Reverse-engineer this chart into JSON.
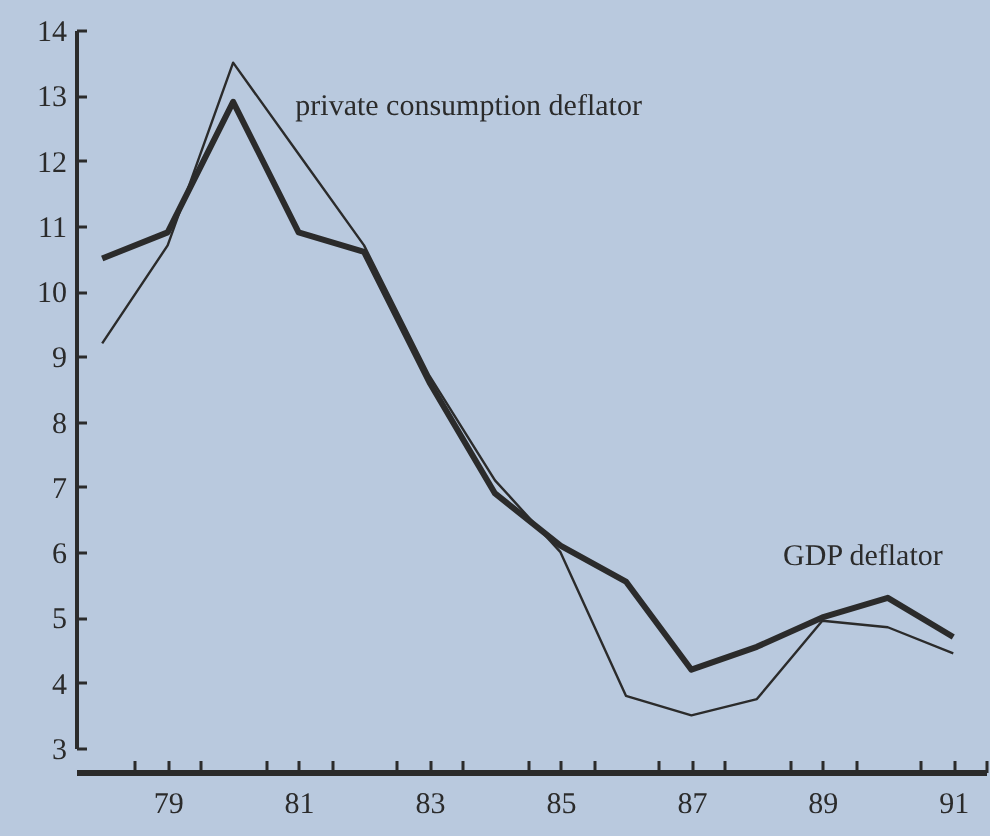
{
  "chart_data": {
    "type": "line",
    "x": [
      78,
      79,
      80,
      81,
      82,
      83,
      84,
      85,
      86,
      87,
      88,
      89,
      90,
      91
    ],
    "series": [
      {
        "name": "GDP deflator",
        "color": "#2b2b2b",
        "values": [
          10.5,
          10.9,
          12.9,
          10.9,
          10.6,
          8.6,
          6.9,
          6.1,
          5.55,
          4.2,
          4.55,
          5.0,
          5.3,
          4.7
        ]
      },
      {
        "name": "private consumption deflator",
        "color": "#2b2b2b",
        "values": [
          9.2,
          10.7,
          13.5,
          12.1,
          10.7,
          8.7,
          7.1,
          6.0,
          3.8,
          3.5,
          3.75,
          4.95,
          4.85,
          4.45
        ]
      }
    ],
    "xlim": [
      77.6,
      91.5
    ],
    "xticks": [
      {
        "value": 78.5,
        "label": null
      },
      79,
      {
        "value": 79.5,
        "label": null
      },
      {
        "value": 80.5,
        "label": null
      },
      81,
      {
        "value": 81.5,
        "label": null
      },
      {
        "value": 82.5,
        "label": null
      },
      83,
      {
        "value": 83.5,
        "label": null
      },
      {
        "value": 84.5,
        "label": null
      },
      85,
      {
        "value": 85.5,
        "label": null
      },
      {
        "value": 86.5,
        "label": null
      },
      87,
      {
        "value": 87.5,
        "label": null
      },
      {
        "value": 88.5,
        "label": null
      },
      89,
      {
        "value": 89.5,
        "label": null
      },
      {
        "value": 90.5,
        "label": null
      },
      91,
      {
        "value": 91.5,
        "label": null
      }
    ],
    "ylim": [
      3,
      14
    ],
    "yticks": [
      3,
      4,
      5,
      6,
      7,
      8,
      9,
      10,
      11,
      12,
      13,
      14
    ],
    "grid": false,
    "legend": false,
    "marker": "none",
    "line_style": "solid"
  }
}
